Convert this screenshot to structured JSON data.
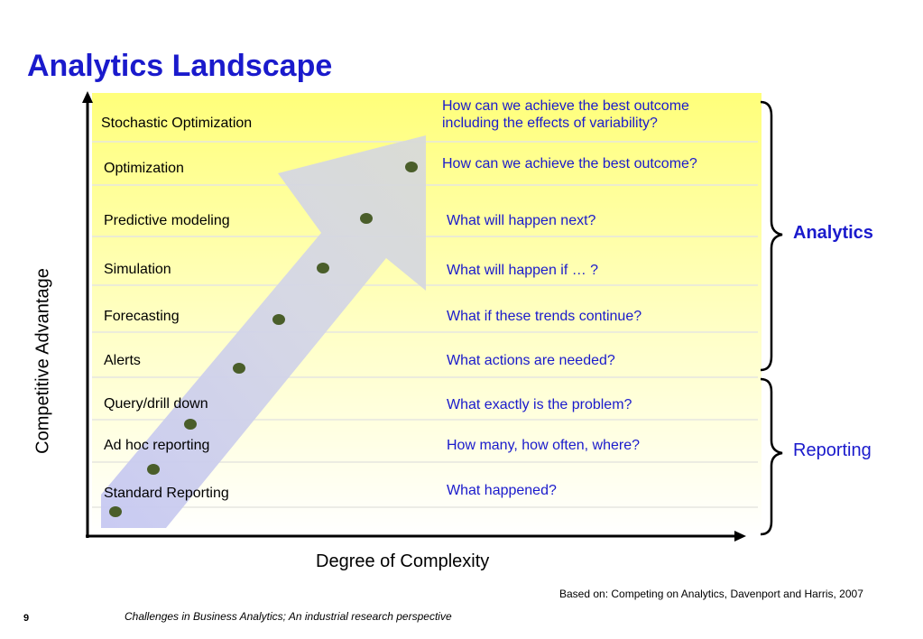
{
  "title": "Analytics Landscape",
  "stages": [
    {
      "label": "Stochastic Optimization",
      "question": "How can we achieve the best outcome\nincluding the effects of variability?"
    },
    {
      "label": "Optimization",
      "question": "How can we achieve the best outcome?"
    },
    {
      "label": "Predictive modeling",
      "question": "What will happen next?"
    },
    {
      "label": "Simulation",
      "question": "What will happen if … ?"
    },
    {
      "label": "Forecasting",
      "question": "What if these trends continue?"
    },
    {
      "label": "Alerts",
      "question": "What actions are needed?"
    },
    {
      "label": "Query/drill down",
      "question": "What exactly is the problem?"
    },
    {
      "label": "Ad hoc reporting",
      "question": "How many, how often, where?"
    },
    {
      "label": "Standard Reporting",
      "question": "What happened?"
    }
  ],
  "axes": {
    "y_label": "Competitive Advantage",
    "x_label": "Degree of Complexity"
  },
  "groups": {
    "analytics": "Analytics",
    "reporting": "Reporting"
  },
  "source": "Based on:  Competing on Analytics, Davenport and Harris, 2007",
  "footer": "Challenges in Business Analytics; An industrial research perspective",
  "page_number": "9",
  "colors": {
    "title": "#1a1acc",
    "question": "#1a1acc",
    "band_top": "#ffff80",
    "band_bottom": "#ffffff",
    "dot": "#4a5e2a",
    "arrow": "#c8cce8"
  }
}
